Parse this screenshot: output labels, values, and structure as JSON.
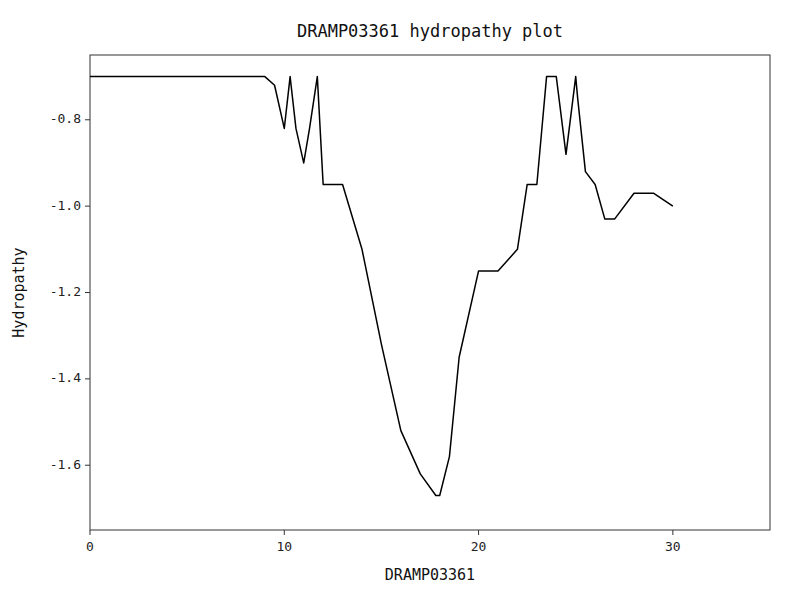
{
  "chart_data": {
    "type": "line",
    "title": "DRAMP03361 hydropathy plot",
    "xlabel": "DRAMP03361",
    "ylabel": "Hydropathy",
    "x": [
      0,
      9,
      9.5,
      10.0,
      10.3,
      10.6,
      11.0,
      11.3,
      11.7,
      12.0,
      12.5,
      13.0,
      14.0,
      15.0,
      16.0,
      17.0,
      17.8,
      18.0,
      18.5,
      19.0,
      20.0,
      21.0,
      21.0,
      22.0,
      22.5,
      23.0,
      23.5,
      24.0,
      24.5,
      25.0,
      25.1,
      25.5,
      26.0,
      26.5,
      27.0,
      28.0,
      29.0,
      30.0
    ],
    "values": [
      -0.7,
      -0.7,
      -0.72,
      -0.82,
      -0.7,
      -0.82,
      -0.9,
      -0.82,
      -0.7,
      -0.95,
      -0.95,
      -0.95,
      -1.1,
      -1.32,
      -1.52,
      -1.62,
      -1.67,
      -1.67,
      -1.58,
      -1.35,
      -1.15,
      -1.15,
      -1.15,
      -1.1,
      -0.95,
      -0.95,
      -0.7,
      -0.7,
      -0.88,
      -0.7,
      -0.75,
      -0.92,
      -0.95,
      -1.03,
      -1.03,
      -0.97,
      -0.97,
      -1.0
    ],
    "color": "black",
    "xlim": [
      0,
      35
    ],
    "ylim": [
      -1.75,
      -0.65
    ],
    "xticks": [
      0,
      10,
      20,
      30
    ],
    "yticks": [
      -1.6,
      -1.4,
      -1.2,
      {
        "value": -1.0,
        "label": "-1.0"
      },
      -0.8
    ],
    "grid": false
  }
}
